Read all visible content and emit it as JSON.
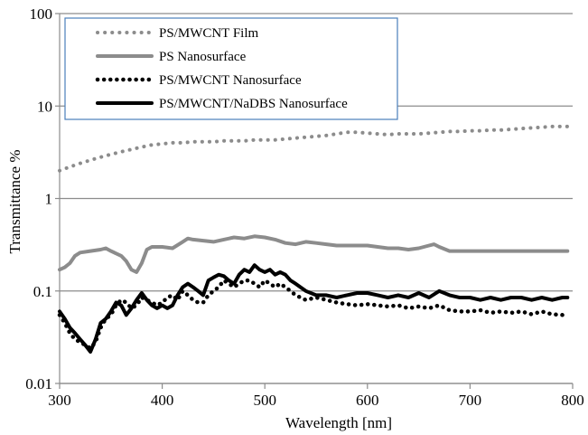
{
  "chart_data": {
    "type": "line",
    "title": "",
    "xlabel": "Wavelength [nm]",
    "ylabel": "Transmittance %",
    "xlim": [
      300,
      800
    ],
    "ylim": [
      0.01,
      100
    ],
    "y_scale": "log",
    "grid": "horizontal",
    "legend_position": "top-left",
    "x_ticks": [
      "300",
      "400",
      "500",
      "600",
      "700",
      "800"
    ],
    "y_ticks": [
      "0.01",
      "0.1",
      "1",
      "10",
      "100"
    ],
    "series": [
      {
        "name": "PS/MWCNT Film",
        "color": "#8c8c8c",
        "style": "dotted-thin",
        "x": [
          300,
          310,
          320,
          330,
          340,
          350,
          360,
          370,
          380,
          390,
          400,
          410,
          420,
          430,
          440,
          450,
          460,
          470,
          480,
          490,
          500,
          510,
          520,
          530,
          540,
          550,
          560,
          570,
          580,
          590,
          600,
          610,
          620,
          630,
          640,
          650,
          660,
          670,
          680,
          690,
          700,
          710,
          720,
          730,
          740,
          750,
          760,
          770,
          780,
          790,
          795
        ],
        "y": [
          2.0,
          2.2,
          2.4,
          2.6,
          2.8,
          3.0,
          3.2,
          3.4,
          3.6,
          3.8,
          3.9,
          4.0,
          4.0,
          4.1,
          4.1,
          4.1,
          4.2,
          4.2,
          4.2,
          4.3,
          4.3,
          4.3,
          4.4,
          4.5,
          4.6,
          4.7,
          4.8,
          5.0,
          5.2,
          5.2,
          5.1,
          5.0,
          4.9,
          5.0,
          5.0,
          5.0,
          5.1,
          5.2,
          5.3,
          5.3,
          5.4,
          5.4,
          5.5,
          5.5,
          5.6,
          5.7,
          5.8,
          5.9,
          6.0,
          6.0,
          6.0
        ]
      },
      {
        "name": "PS Nanosurface",
        "color": "#8c8c8c",
        "style": "solid-thick",
        "x": [
          300,
          305,
          310,
          315,
          320,
          330,
          340,
          345,
          350,
          360,
          365,
          370,
          375,
          380,
          385,
          390,
          400,
          410,
          420,
          425,
          430,
          440,
          450,
          460,
          470,
          480,
          490,
          500,
          510,
          520,
          530,
          540,
          550,
          560,
          570,
          580,
          590,
          600,
          610,
          620,
          630,
          640,
          650,
          660,
          665,
          670,
          680,
          690,
          700,
          720,
          740,
          760,
          780,
          795
        ],
        "y": [
          0.17,
          0.18,
          0.2,
          0.24,
          0.26,
          0.27,
          0.28,
          0.29,
          0.27,
          0.24,
          0.21,
          0.17,
          0.16,
          0.2,
          0.28,
          0.3,
          0.3,
          0.29,
          0.34,
          0.37,
          0.36,
          0.35,
          0.34,
          0.36,
          0.38,
          0.37,
          0.39,
          0.38,
          0.36,
          0.33,
          0.32,
          0.34,
          0.33,
          0.32,
          0.31,
          0.31,
          0.31,
          0.31,
          0.3,
          0.29,
          0.29,
          0.28,
          0.29,
          0.31,
          0.32,
          0.3,
          0.27,
          0.27,
          0.27,
          0.27,
          0.27,
          0.27,
          0.27,
          0.27
        ]
      },
      {
        "name": "PS/MWCNT Nanosurface",
        "color": "#000000",
        "style": "dotted-thick",
        "x": [
          300,
          305,
          310,
          315,
          320,
          325,
          330,
          335,
          340,
          345,
          350,
          355,
          360,
          365,
          370,
          375,
          380,
          385,
          390,
          395,
          400,
          405,
          410,
          415,
          420,
          425,
          430,
          435,
          440,
          445,
          450,
          455,
          460,
          465,
          470,
          475,
          480,
          485,
          490,
          495,
          500,
          505,
          510,
          515,
          520,
          525,
          530,
          540,
          550,
          560,
          570,
          580,
          590,
          600,
          610,
          620,
          630,
          640,
          650,
          660,
          670,
          680,
          690,
          700,
          710,
          720,
          730,
          740,
          750,
          760,
          770,
          780,
          790,
          795
        ],
        "y": [
          0.055,
          0.045,
          0.035,
          0.03,
          0.028,
          0.026,
          0.024,
          0.028,
          0.04,
          0.05,
          0.055,
          0.07,
          0.08,
          0.075,
          0.065,
          0.07,
          0.085,
          0.08,
          0.075,
          0.07,
          0.075,
          0.085,
          0.09,
          0.08,
          0.1,
          0.09,
          0.08,
          0.075,
          0.075,
          0.09,
          0.1,
          0.11,
          0.13,
          0.12,
          0.11,
          0.12,
          0.13,
          0.13,
          0.12,
          0.11,
          0.13,
          0.12,
          0.11,
          0.12,
          0.11,
          0.1,
          0.09,
          0.08,
          0.085,
          0.08,
          0.075,
          0.072,
          0.07,
          0.072,
          0.07,
          0.068,
          0.07,
          0.065,
          0.068,
          0.065,
          0.07,
          0.062,
          0.06,
          0.06,
          0.062,
          0.058,
          0.06,
          0.058,
          0.06,
          0.056,
          0.06,
          0.056,
          0.055,
          0.056
        ]
      },
      {
        "name": "PS/MWCNT/NaDBS Nanosurface",
        "color": "#000000",
        "style": "solid-thick",
        "x": [
          300,
          305,
          310,
          315,
          320,
          325,
          330,
          335,
          340,
          345,
          350,
          355,
          360,
          365,
          370,
          375,
          380,
          385,
          390,
          395,
          400,
          405,
          410,
          415,
          420,
          425,
          430,
          435,
          440,
          445,
          450,
          455,
          460,
          465,
          470,
          475,
          480,
          485,
          490,
          495,
          500,
          505,
          510,
          515,
          520,
          525,
          530,
          540,
          550,
          560,
          570,
          580,
          590,
          600,
          610,
          620,
          630,
          640,
          650,
          660,
          670,
          680,
          690,
          700,
          710,
          720,
          730,
          740,
          750,
          760,
          770,
          780,
          790,
          795
        ],
        "y": [
          0.06,
          0.05,
          0.04,
          0.035,
          0.03,
          0.026,
          0.022,
          0.03,
          0.045,
          0.05,
          0.06,
          0.075,
          0.07,
          0.055,
          0.065,
          0.08,
          0.095,
          0.08,
          0.07,
          0.065,
          0.07,
          0.065,
          0.07,
          0.09,
          0.11,
          0.12,
          0.11,
          0.1,
          0.09,
          0.13,
          0.14,
          0.15,
          0.145,
          0.13,
          0.12,
          0.15,
          0.17,
          0.16,
          0.19,
          0.17,
          0.16,
          0.17,
          0.15,
          0.16,
          0.15,
          0.13,
          0.12,
          0.1,
          0.09,
          0.09,
          0.085,
          0.09,
          0.095,
          0.095,
          0.09,
          0.085,
          0.09,
          0.085,
          0.095,
          0.085,
          0.1,
          0.09,
          0.085,
          0.085,
          0.08,
          0.085,
          0.08,
          0.085,
          0.085,
          0.08,
          0.085,
          0.08,
          0.085,
          0.085
        ]
      }
    ]
  }
}
